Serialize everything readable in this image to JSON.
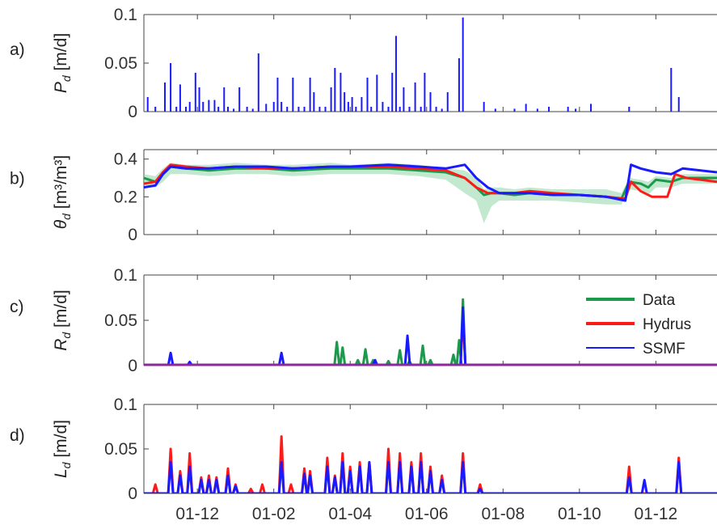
{
  "figure": {
    "x_ticks": [
      "01-12",
      "01-02",
      "01-04",
      "01-06",
      "01-08",
      "01-10",
      "01-12"
    ],
    "legend": [
      {
        "label": "Data",
        "color": "#1a9a4a"
      },
      {
        "label": "Hydrus",
        "color": "#ff1a1a"
      },
      {
        "label": "SSMF",
        "color": "#1a1aff"
      }
    ]
  },
  "chart_data": [
    {
      "type": "bar",
      "panel_label": "a)",
      "ylabel": "P_d [m/d]",
      "ylabel_symbol": "P",
      "ylabel_sub": "d",
      "ylabel_unit": " [m/d]",
      "ylim": [
        0,
        0.1
      ],
      "yticks": [
        "0",
        "0.05",
        "0.1"
      ],
      "xlim": [
        -1.4,
        13.6
      ],
      "x_month_ticks": [
        0,
        2,
        4,
        6,
        8,
        10,
        12
      ],
      "series": [
        {
          "color": "#1a1aff",
          "x": [
            -1.3,
            -1.1,
            -0.85,
            -0.7,
            -0.55,
            -0.45,
            -0.3,
            -0.2,
            -0.05,
            0.05,
            0.15,
            0.3,
            0.45,
            0.55,
            0.7,
            0.8,
            0.95,
            1.1,
            1.3,
            1.45,
            1.6,
            1.8,
            2.0,
            2.1,
            2.2,
            2.35,
            2.5,
            2.65,
            2.8,
            2.95,
            3.05,
            3.2,
            3.35,
            3.5,
            3.6,
            3.75,
            3.85,
            3.95,
            4.05,
            4.15,
            4.3,
            4.45,
            4.55,
            4.7,
            4.85,
            5.0,
            5.1,
            5.2,
            5.3,
            5.4,
            5.55,
            5.7,
            5.85,
            5.95,
            6.1,
            6.25,
            6.4,
            6.55,
            6.85,
            6.95,
            7.5,
            7.8,
            8.3,
            8.6,
            8.9,
            9.2,
            9.7,
            9.9,
            10.3,
            11.3,
            12.4,
            12.6
          ],
          "values": [
            0.015,
            0.005,
            0.03,
            0.05,
            0.005,
            0.028,
            0.005,
            0.01,
            0.04,
            0.025,
            0.01,
            0.012,
            0.012,
            0.005,
            0.025,
            0.005,
            0.003,
            0.025,
            0.005,
            0.003,
            0.06,
            0.008,
            0.01,
            0.035,
            0.01,
            0.005,
            0.035,
            0.005,
            0.005,
            0.035,
            0.02,
            0.005,
            0.005,
            0.025,
            0.045,
            0.04,
            0.02,
            0.01,
            0.015,
            0.005,
            0.015,
            0.035,
            0.005,
            0.038,
            0.01,
            0.005,
            0.04,
            0.078,
            0.005,
            0.025,
            0.005,
            0.03,
            0.005,
            0.04,
            0.02,
            0.005,
            0.003,
            0.02,
            0.055,
            0.097,
            0.01,
            0.003,
            0.003,
            0.008,
            0.003,
            0.005,
            0.005,
            0.003,
            0.008,
            0.005,
            0.045,
            0.015
          ]
        }
      ]
    },
    {
      "type": "line",
      "panel_label": "b)",
      "ylabel": "θ_d [m³/m³]",
      "ylabel_symbol": "θ",
      "ylabel_sub": "d",
      "ylabel_unit": " [m³/m³]",
      "ylim": [
        0,
        0.45
      ],
      "yticks": [
        "0",
        "0.2",
        "0.4"
      ],
      "xlim": [
        -1.4,
        13.6
      ],
      "x_month_ticks": [
        0,
        2,
        4,
        6,
        8,
        10,
        12
      ],
      "series": [
        {
          "name": "Data",
          "color": "#1a9a4a",
          "band": true,
          "x": [
            -1.4,
            -1.1,
            -0.9,
            -0.7,
            -0.3,
            0.3,
            1.0,
            1.8,
            2.5,
            3.5,
            4.0,
            5.0,
            5.8,
            6.5,
            7.0,
            7.3,
            7.5,
            7.7,
            7.9,
            8.3,
            8.7,
            9.3,
            10.0,
            10.7,
            11.1,
            11.3,
            11.6,
            11.8,
            12.0,
            12.4,
            12.7,
            13.6
          ],
          "values": [
            0.3,
            0.28,
            0.32,
            0.36,
            0.35,
            0.34,
            0.35,
            0.35,
            0.34,
            0.35,
            0.35,
            0.35,
            0.34,
            0.33,
            0.3,
            0.25,
            0.21,
            0.22,
            0.22,
            0.21,
            0.22,
            0.21,
            0.21,
            0.2,
            0.19,
            0.28,
            0.27,
            0.25,
            0.29,
            0.28,
            0.3,
            0.3
          ],
          "band_low": [
            0.26,
            0.25,
            0.28,
            0.32,
            0.32,
            0.31,
            0.32,
            0.32,
            0.31,
            0.32,
            0.32,
            0.32,
            0.31,
            0.29,
            0.22,
            0.18,
            0.06,
            0.15,
            0.18,
            0.18,
            0.18,
            0.18,
            0.17,
            0.16,
            0.16,
            0.24,
            0.23,
            0.21,
            0.25,
            0.25,
            0.27,
            0.27
          ],
          "band_high": [
            0.32,
            0.31,
            0.35,
            0.38,
            0.37,
            0.37,
            0.38,
            0.37,
            0.37,
            0.38,
            0.37,
            0.38,
            0.37,
            0.35,
            0.34,
            0.3,
            0.24,
            0.25,
            0.25,
            0.24,
            0.25,
            0.24,
            0.24,
            0.24,
            0.22,
            0.3,
            0.29,
            0.28,
            0.31,
            0.3,
            0.32,
            0.32
          ]
        },
        {
          "name": "Hydrus",
          "color": "#ff1a1a",
          "x": [
            -1.4,
            -1.1,
            -0.9,
            -0.7,
            -0.3,
            0.3,
            1.0,
            1.8,
            2.5,
            3.5,
            4.0,
            5.0,
            5.8,
            6.5,
            7.0,
            7.3,
            7.6,
            7.9,
            8.3,
            8.7,
            9.3,
            10.0,
            10.7,
            11.2,
            11.35,
            11.6,
            11.9,
            12.3,
            12.5,
            12.8,
            13.6
          ],
          "values": [
            0.27,
            0.28,
            0.33,
            0.37,
            0.36,
            0.35,
            0.36,
            0.35,
            0.35,
            0.36,
            0.36,
            0.36,
            0.35,
            0.34,
            0.3,
            0.25,
            0.22,
            0.22,
            0.22,
            0.23,
            0.22,
            0.21,
            0.2,
            0.19,
            0.28,
            0.23,
            0.2,
            0.2,
            0.32,
            0.3,
            0.28
          ]
        },
        {
          "name": "SSMF",
          "color": "#1a1aff",
          "x": [
            -1.4,
            -1.1,
            -0.9,
            -0.7,
            -0.3,
            0.3,
            1.0,
            1.8,
            2.5,
            3.5,
            4.0,
            5.0,
            5.8,
            6.5,
            7.0,
            7.3,
            7.6,
            7.9,
            8.3,
            8.7,
            9.3,
            10.0,
            10.7,
            11.2,
            11.35,
            11.6,
            12.0,
            12.4,
            12.7,
            13.6
          ],
          "values": [
            0.25,
            0.26,
            0.32,
            0.36,
            0.35,
            0.35,
            0.36,
            0.36,
            0.35,
            0.36,
            0.36,
            0.37,
            0.36,
            0.35,
            0.37,
            0.3,
            0.25,
            0.22,
            0.22,
            0.22,
            0.21,
            0.21,
            0.2,
            0.18,
            0.37,
            0.35,
            0.33,
            0.32,
            0.35,
            0.33
          ]
        }
      ]
    },
    {
      "type": "line",
      "panel_label": "c)",
      "ylabel": "R_d [m/d]",
      "ylabel_symbol": "R",
      "ylabel_sub": "d",
      "ylabel_unit": " [m/d]",
      "ylim": [
        0,
        0.1
      ],
      "yticks": [
        "0",
        "0.05",
        "0.1"
      ],
      "xlim": [
        -1.4,
        13.6
      ],
      "x_month_ticks": [
        0,
        2,
        4,
        6,
        8,
        10,
        12
      ],
      "spikes": true,
      "series": [
        {
          "name": "Data",
          "color": "#1a9a4a",
          "x": [
            3.65,
            3.8,
            4.2,
            4.4,
            4.6,
            5.0,
            5.3,
            5.55,
            5.9,
            6.1,
            6.7,
            6.85,
            6.95
          ],
          "values": [
            0.026,
            0.02,
            0.006,
            0.018,
            0.006,
            0.005,
            0.017,
            0.005,
            0.022,
            0.006,
            0.012,
            0.028,
            0.073
          ]
        },
        {
          "name": "Hydrus",
          "color": "#ff1a1a",
          "x": [
            6.95
          ],
          "values": [
            0.055
          ]
        },
        {
          "name": "SSMF",
          "color": "#1a1aff",
          "x": [
            -0.7,
            -0.2,
            2.2,
            4.65,
            5.5,
            6.95
          ],
          "values": [
            0.014,
            0.004,
            0.014,
            0.006,
            0.033,
            0.064
          ]
        }
      ]
    },
    {
      "type": "line",
      "panel_label": "d)",
      "ylabel": "L_d [m/d]",
      "ylabel_symbol": "L",
      "ylabel_sub": "d",
      "ylabel_unit": " [m/d]",
      "ylim": [
        0,
        0.1
      ],
      "yticks": [
        "0",
        "0.05",
        "0.1"
      ],
      "xlim": [
        -1.4,
        13.6
      ],
      "x_month_ticks": [
        0,
        2,
        4,
        6,
        8,
        10,
        12
      ],
      "spikes": true,
      "series": [
        {
          "name": "Hydrus",
          "color": "#ff1a1a",
          "x": [
            -1.1,
            -0.7,
            -0.45,
            -0.2,
            0.1,
            0.3,
            0.5,
            0.8,
            1.0,
            1.4,
            1.7,
            2.2,
            2.45,
            2.8,
            2.95,
            3.4,
            3.6,
            3.8,
            4.0,
            4.25,
            4.5,
            5.0,
            5.3,
            5.6,
            5.85,
            6.1,
            6.4,
            6.95,
            7.4,
            11.3,
            12.6
          ],
          "values": [
            0.01,
            0.05,
            0.025,
            0.045,
            0.018,
            0.02,
            0.018,
            0.028,
            0.01,
            0.005,
            0.01,
            0.064,
            0.01,
            0.028,
            0.025,
            0.04,
            0.02,
            0.045,
            0.03,
            0.035,
            0.035,
            0.05,
            0.045,
            0.035,
            0.045,
            0.03,
            0.02,
            0.045,
            0.01,
            0.03,
            0.04
          ]
        },
        {
          "name": "SSMF",
          "color": "#1a1aff",
          "x": [
            -0.7,
            -0.45,
            -0.2,
            0.1,
            0.3,
            0.5,
            0.8,
            1.0,
            2.2,
            2.8,
            2.95,
            3.4,
            3.6,
            3.8,
            4.0,
            4.25,
            4.5,
            5.0,
            5.3,
            5.6,
            5.85,
            6.1,
            6.4,
            6.95,
            7.4,
            11.3,
            11.7,
            12.6
          ],
          "values": [
            0.035,
            0.02,
            0.03,
            0.015,
            0.015,
            0.015,
            0.02,
            0.008,
            0.035,
            0.022,
            0.02,
            0.03,
            0.018,
            0.035,
            0.025,
            0.03,
            0.035,
            0.035,
            0.035,
            0.03,
            0.035,
            0.025,
            0.015,
            0.035,
            0.005,
            0.018,
            0.015,
            0.035
          ]
        }
      ]
    }
  ]
}
